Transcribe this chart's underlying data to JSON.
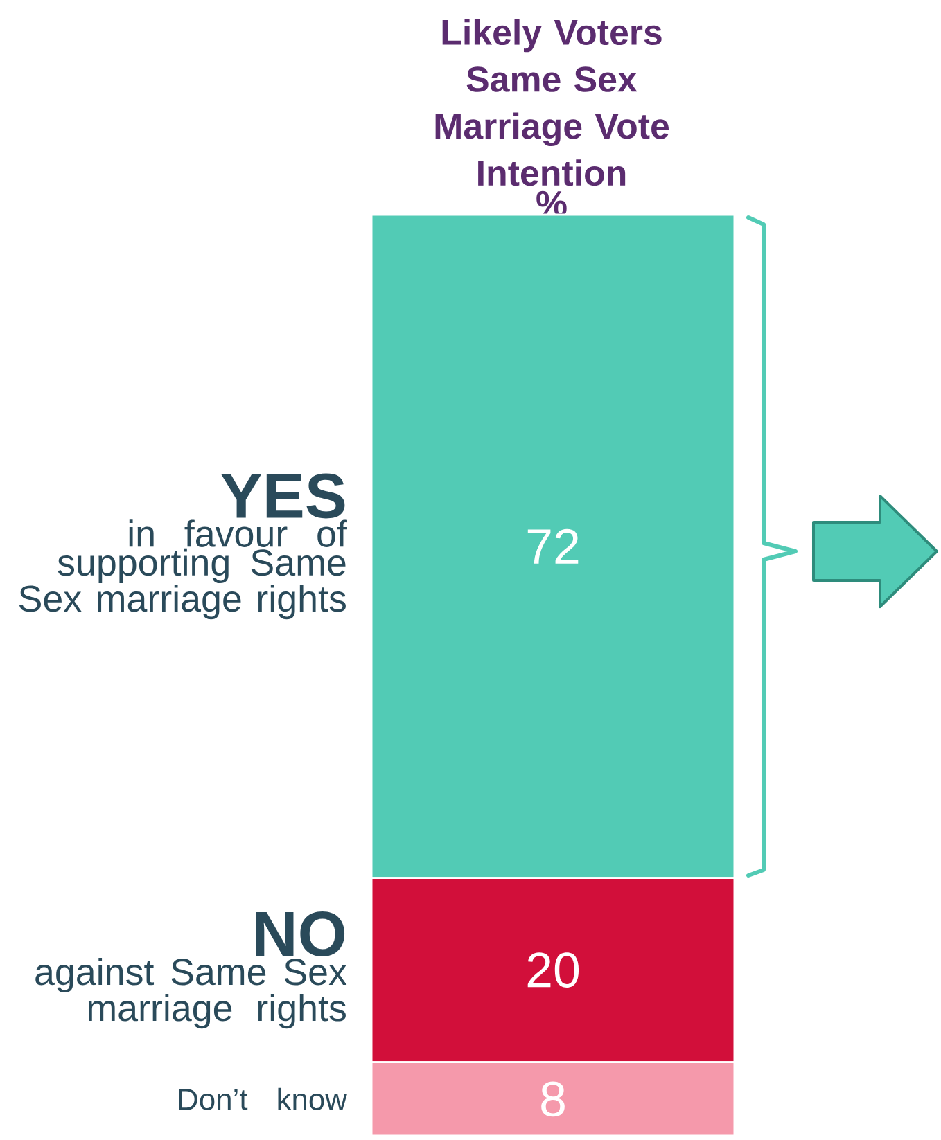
{
  "chart_data": {
    "type": "bar",
    "stacked": true,
    "data_labels": true,
    "title": "Likely Voters Same Sex Marriage Vote Intention",
    "subtitle": "%",
    "categories": [
      null
    ],
    "series": [
      {
        "name": "Don’t know",
        "color": "#f599ab",
        "values": [
          8
        ]
      },
      {
        "name": "NO",
        "color": "#d20f3a",
        "values": [
          20
        ]
      },
      {
        "name": "YES",
        "color": "#52cbb5",
        "values": [
          72
        ]
      }
    ],
    "annotations": [
      "in favour of supporting Same Sex marriage rights",
      "against Same Sex marriage rights"
    ]
  }
}
